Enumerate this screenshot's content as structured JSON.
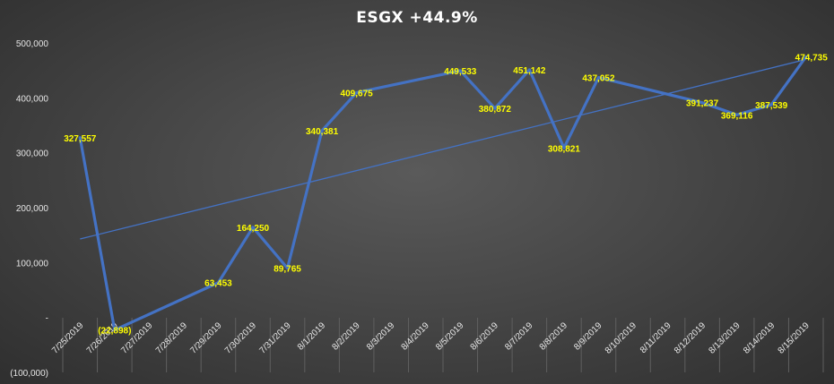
{
  "chart_data": {
    "type": "line",
    "title": "ESGX +44.9%",
    "xlabel": "",
    "ylabel": "",
    "categories": [
      "7/25/2019",
      "7/26/2019",
      "7/27/2019",
      "7/28/2019",
      "7/29/2019",
      "7/30/2019",
      "7/31/2019",
      "8/1/2019",
      "8/2/2019",
      "8/3/2019",
      "8/4/2019",
      "8/5/2019",
      "8/6/2019",
      "8/7/2019",
      "8/8/2019",
      "8/9/2019",
      "8/10/2019",
      "8/11/2019",
      "8/12/2019",
      "8/13/2019",
      "8/14/2019",
      "8/15/2019"
    ],
    "series": [
      {
        "values": [
          327557,
          -22898,
          null,
          null,
          63453,
          164250,
          89765,
          340381,
          409675,
          null,
          null,
          449533,
          380872,
          451142,
          308821,
          437052,
          null,
          null,
          391237,
          369116,
          387539,
          474735
        ],
        "labels": [
          "327,557",
          "(22,898)",
          null,
          null,
          "63,453",
          "164,250",
          "89,765",
          "340,381",
          "409,675",
          null,
          null,
          "449,533",
          "380,872",
          "451,142",
          "308,821",
          "437,052",
          null,
          null,
          "391,237",
          "369,116",
          "387,539",
          "474,735"
        ],
        "color": "#4472c4"
      }
    ],
    "trendline": {
      "type": "linear",
      "color": "#4472c4",
      "start": 143000,
      "end": 470000
    },
    "ylim": [
      -100000,
      500000
    ],
    "yticks": [
      500000,
      400000,
      300000,
      200000,
      100000,
      0,
      -100000
    ],
    "ytick_labels": [
      "500,000",
      "400,000",
      "300,000",
      "200,000",
      "100,000",
      "-",
      "(100,000)"
    ],
    "grid": "vertical",
    "legend": "none",
    "data_label_color": "#ffff00"
  }
}
